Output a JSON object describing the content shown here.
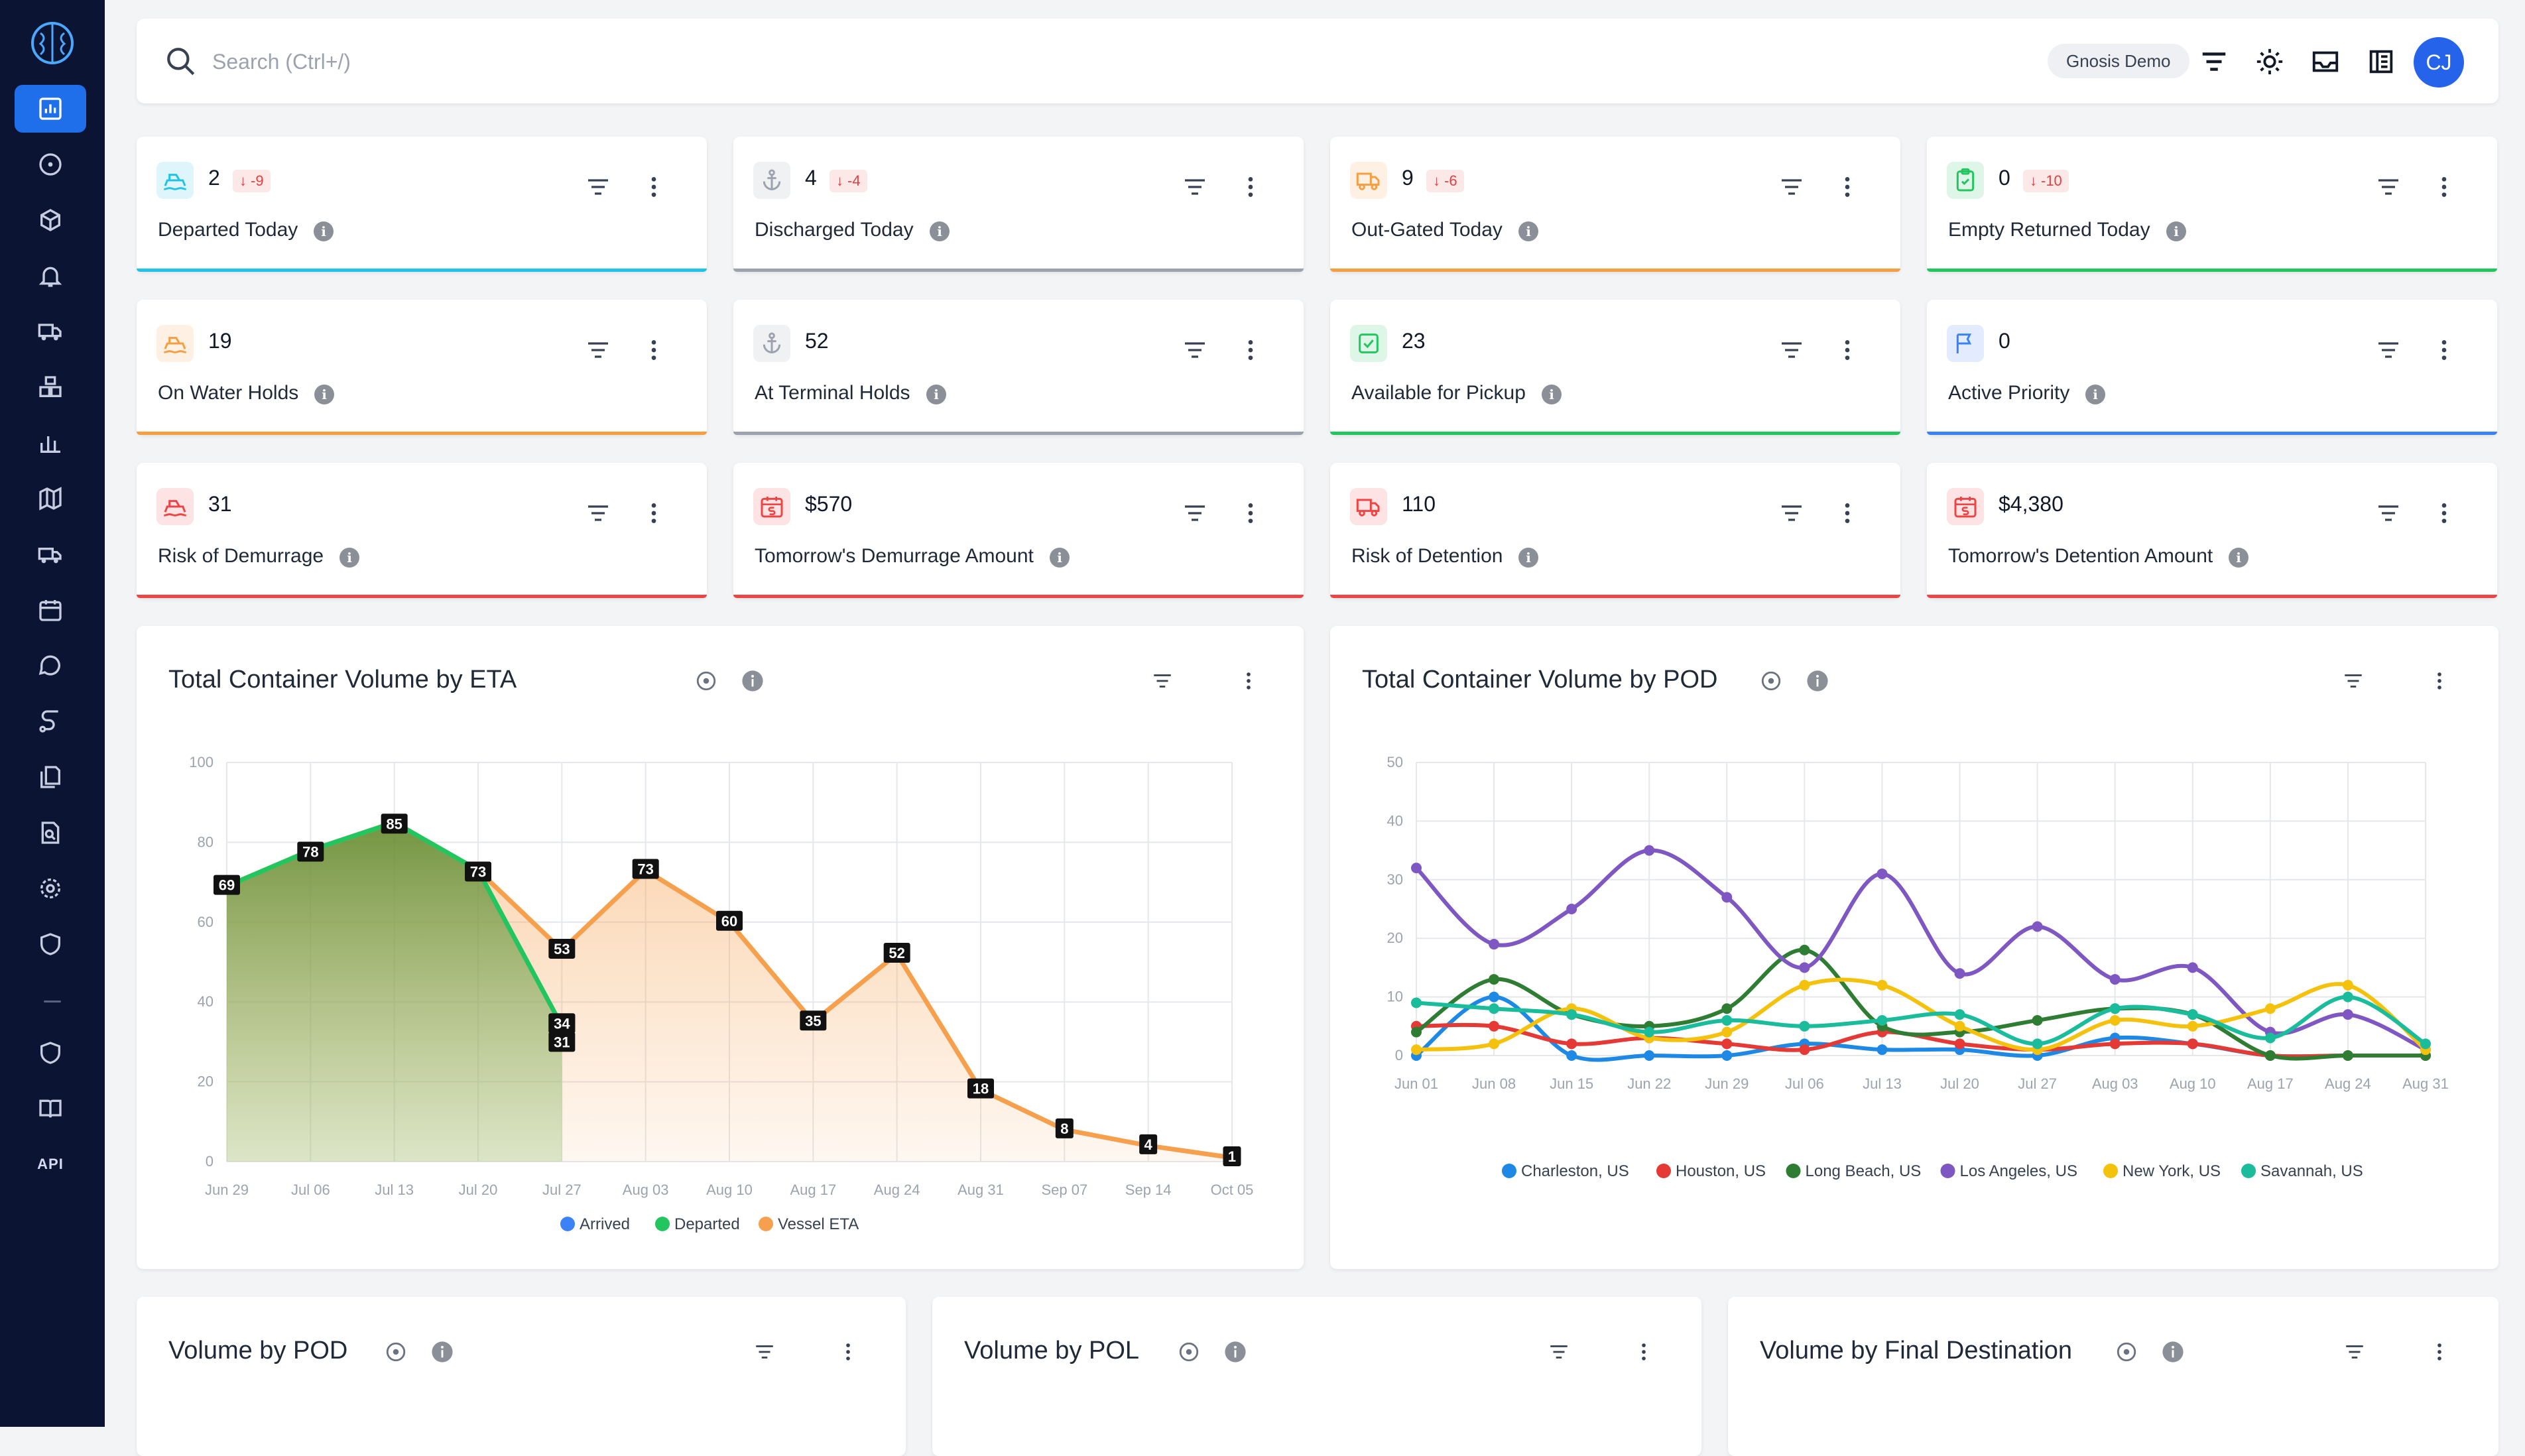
{
  "search": {
    "placeholder": "Search (Ctrl+/)"
  },
  "header": {
    "workspace": "Gnosis Demo",
    "user_initials": "CJ"
  },
  "sidebar": {
    "items": [
      {
        "name": "dashboard-icon",
        "active": true
      },
      {
        "name": "compass-icon"
      },
      {
        "name": "cube-icon"
      },
      {
        "name": "bell-icon"
      },
      {
        "name": "truck-icon"
      },
      {
        "name": "boxes-icon"
      },
      {
        "name": "bar-chart-icon"
      },
      {
        "name": "map-icon"
      },
      {
        "name": "delivery-icon"
      },
      {
        "name": "calendar-icon"
      },
      {
        "name": "chat-icon"
      },
      {
        "name": "route-icon"
      },
      {
        "name": "documents-icon"
      },
      {
        "name": "search-report-icon"
      },
      {
        "name": "settings-icon"
      },
      {
        "name": "shield-icon"
      }
    ],
    "bottom": [
      {
        "name": "shield-check-icon"
      },
      {
        "name": "book-icon"
      }
    ],
    "api_label": "API"
  },
  "kpis": [
    {
      "value": "2",
      "delta": "-9",
      "label": "Departed Today",
      "accent": "#22c3e6",
      "icon": "ship-icon"
    },
    {
      "value": "4",
      "delta": "-4",
      "label": "Discharged Today",
      "accent": "#9ca3af",
      "icon": "anchor-icon"
    },
    {
      "value": "9",
      "delta": "-6",
      "label": "Out-Gated Today",
      "accent": "#f59e42",
      "icon": "truck-icon"
    },
    {
      "value": "0",
      "delta": "-10",
      "label": "Empty Returned Today",
      "accent": "#22c55e",
      "icon": "clipboard-icon"
    },
    {
      "value": "19",
      "delta": "",
      "label": "On Water Holds",
      "accent": "#f59e42",
      "icon": "ship-icon"
    },
    {
      "value": "52",
      "delta": "",
      "label": "At Terminal Holds",
      "accent": "#9ca3af",
      "icon": "anchor-icon"
    },
    {
      "value": "23",
      "delta": "",
      "label": "Available for Pickup",
      "accent": "#22c55e",
      "icon": "check-icon"
    },
    {
      "value": "0",
      "delta": "",
      "label": "Active Priority",
      "accent": "#3b82f6",
      "icon": "flag-icon"
    },
    {
      "value": "31",
      "delta": "",
      "label": "Risk of Demurrage",
      "accent": "#ef4444",
      "icon": "ship-icon"
    },
    {
      "value": "$570",
      "delta": "",
      "label": "Tomorrow's Demurrage Amount",
      "accent": "#ef4444",
      "icon": "calendar-money-icon"
    },
    {
      "value": "110",
      "delta": "",
      "label": "Risk of Detention",
      "accent": "#ef4444",
      "icon": "truck-icon"
    },
    {
      "value": "$4,380",
      "delta": "",
      "label": "Tomorrow's Detention Amount",
      "accent": "#ef4444",
      "icon": "calendar-money-icon"
    }
  ],
  "cards": {
    "eta_title": "Total Container Volume by ETA",
    "pod_title": "Total Container Volume by POD",
    "vol_pod_title": "Volume by POD",
    "vol_pol_title": "Volume by POL",
    "vol_final_title": "Volume by Final Destination"
  },
  "chart_data": [
    {
      "type": "area",
      "title": "Total Container Volume by ETA",
      "categories": [
        "Jun 29",
        "Jul 06",
        "Jul 13",
        "Jul 20",
        "Jul 27",
        "Aug 03",
        "Aug 10",
        "Aug 17",
        "Aug 24",
        "Aug 31",
        "Sep 07",
        "Sep 14",
        "Oct 05"
      ],
      "ylim": [
        0,
        100
      ],
      "yticks": [
        0,
        20,
        40,
        60,
        80,
        100
      ],
      "series": [
        {
          "name": "Arrived",
          "color": "#3b82f6",
          "values": [
            null,
            null,
            null,
            null,
            null,
            null,
            null,
            null,
            null,
            null,
            null,
            null,
            null
          ]
        },
        {
          "name": "Departed",
          "color": "#22c55e",
          "values": [
            69,
            78,
            85,
            73,
            34,
            null,
            null,
            null,
            null,
            null,
            null,
            null,
            null
          ]
        },
        {
          "name": "Vessel ETA",
          "color": "#f6a04d",
          "values": [
            69,
            78,
            85,
            73,
            53,
            73,
            60,
            35,
            52,
            18,
            8,
            4,
            1
          ]
        }
      ],
      "extra_labels": [
        {
          "x": "Jul 27",
          "value": 31
        }
      ],
      "legend": "bottom"
    },
    {
      "type": "line",
      "title": "Total Container Volume by POD",
      "categories": [
        "Jun 01",
        "Jun 08",
        "Jun 15",
        "Jun 22",
        "Jun 29",
        "Jul 06",
        "Jul 13",
        "Jul 20",
        "Jul 27",
        "Aug 03",
        "Aug 10",
        "Aug 17",
        "Aug 24",
        "Aug 31"
      ],
      "ylim": [
        0,
        50
      ],
      "yticks": [
        0,
        10,
        20,
        30,
        40,
        50
      ],
      "series": [
        {
          "name": "Charleston, US",
          "color": "#1e88e5",
          "values": [
            0,
            10,
            0,
            0,
            0,
            2,
            1,
            1,
            0,
            3,
            2,
            0,
            0,
            0
          ]
        },
        {
          "name": "Houston, US",
          "color": "#e53935",
          "values": [
            5,
            5,
            2,
            3,
            2,
            1,
            4,
            2,
            1,
            2,
            2,
            0,
            0,
            0
          ]
        },
        {
          "name": "Long Beach, US",
          "color": "#2e7d32",
          "values": [
            4,
            13,
            7,
            5,
            8,
            18,
            5,
            4,
            6,
            8,
            7,
            0,
            0,
            0
          ]
        },
        {
          "name": "Los Angeles, US",
          "color": "#7e57c2",
          "values": [
            32,
            19,
            25,
            35,
            27,
            15,
            31,
            14,
            22,
            13,
            15,
            4,
            7,
            1
          ]
        },
        {
          "name": "New York, US",
          "color": "#f4c20d",
          "values": [
            1,
            2,
            8,
            3,
            4,
            12,
            12,
            5,
            1,
            6,
            5,
            8,
            12,
            1
          ]
        },
        {
          "name": "Savannah, US",
          "color": "#1abc9c",
          "values": [
            9,
            8,
            7,
            4,
            6,
            5,
            6,
            7,
            2,
            8,
            7,
            3,
            10,
            2
          ]
        }
      ],
      "legend": "bottom"
    }
  ]
}
